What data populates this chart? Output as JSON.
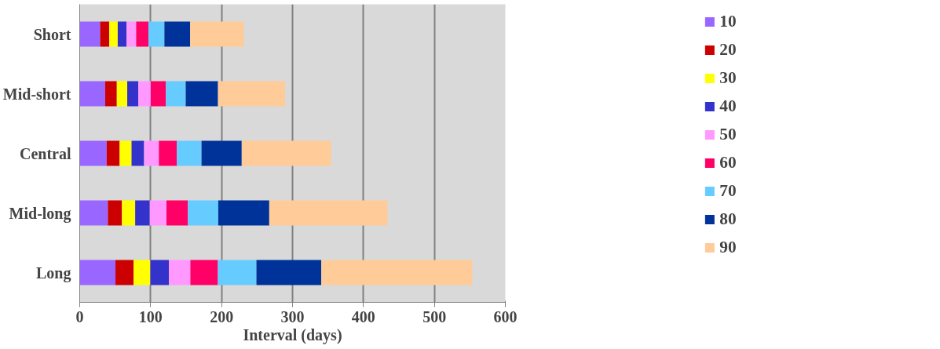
{
  "chart_data": {
    "type": "bar",
    "orientation": "horizontal",
    "stacked": true,
    "xlabel": "Interval (days)",
    "categories": [
      "Short",
      "Mid-short",
      "Central",
      "Mid-long",
      "Long"
    ],
    "series": [
      {
        "name": "10",
        "color": "#9966ff",
        "values": [
          28.8,
          35.9,
          38.0,
          39.7,
          50.4
        ]
      },
      {
        "name": "20",
        "color": "#cc0000",
        "values": [
          12.8,
          16.4,
          18.3,
          19.8,
          25.5
        ]
      },
      {
        "name": "30",
        "color": "#ffff00",
        "values": [
          12.0,
          14.7,
          16.8,
          18.7,
          23.7
        ]
      },
      {
        "name": "40",
        "color": "#3333cc",
        "values": [
          12.4,
          15.6,
          17.7,
          20.6,
          26.1
        ]
      },
      {
        "name": "50",
        "color": "#ff99ff",
        "values": [
          13.6,
          17.5,
          20.8,
          23.5,
          30.3
        ]
      },
      {
        "name": "60",
        "color": "#ff0066",
        "values": [
          17.3,
          21.4,
          25.4,
          30.3,
          38.8
        ]
      },
      {
        "name": "70",
        "color": "#66ccff",
        "values": [
          22.5,
          27.9,
          34.7,
          42.7,
          54.3
        ]
      },
      {
        "name": "80",
        "color": "#003399",
        "values": [
          36.3,
          45.6,
          56.7,
          71.9,
          91.4
        ]
      },
      {
        "name": "90",
        "color": "#ffcc99",
        "values": [
          75.7,
          94.5,
          126.0,
          166.8,
          212.9
        ]
      }
    ],
    "xlim": [
      0,
      600
    ],
    "xticks": [
      0,
      100,
      200,
      300,
      400,
      500,
      600
    ],
    "grid": "x",
    "legend": "right"
  }
}
